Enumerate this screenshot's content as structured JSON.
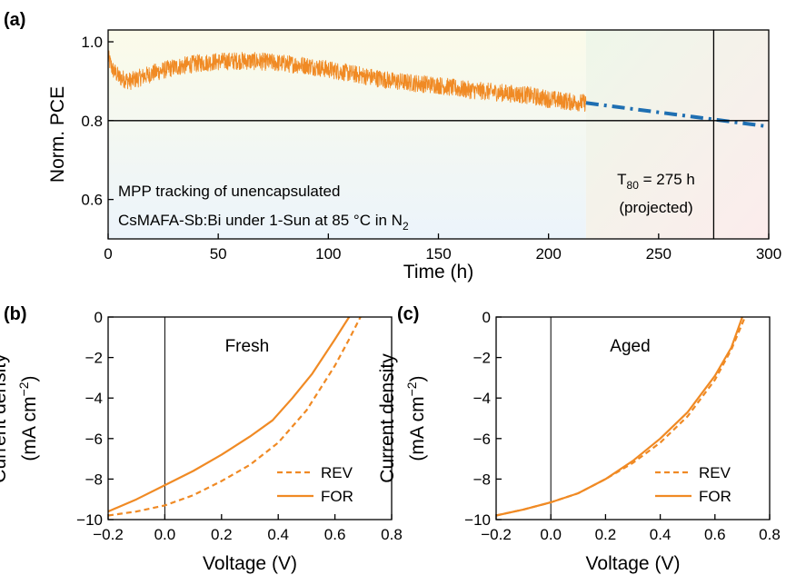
{
  "colors": {
    "series_orange": "#f08a24",
    "projection_blue": "#1f6fb2",
    "bg_yellow": "#fbfbe9",
    "bg_blue": "#ecf4fb",
    "bg_green": "#eef7e9",
    "bg_pink": "#fcecec",
    "axis": "#000000"
  },
  "chart_data": [
    {
      "panel_label": "(a)",
      "type": "line",
      "xlabel": "Time (h)",
      "ylabel": "Norm. PCE",
      "xlim": [
        0,
        300
      ],
      "ylim": [
        0.5,
        1.03
      ],
      "xticks": [
        "0",
        "50",
        "100",
        "150",
        "200",
        "250",
        "300"
      ],
      "yticks": [
        "0.6",
        "0.8",
        "1.0"
      ],
      "reference_line_y": 0.8,
      "t80_marker_x": 275,
      "annotation_lines": [
        "MPP tracking of unencapsulated",
        "CsMAFA-Sb:Bi under 1-Sun at 85 °C in N",
        "2"
      ],
      "t80_label": [
        "T",
        "80",
        " = 275 h"
      ],
      "projected_label": "(projected)",
      "series": [
        {
          "style": "noisy-measured",
          "x": [
            0,
            2,
            5,
            10,
            20,
            30,
            40,
            50,
            60,
            70,
            80,
            90,
            100,
            110,
            120,
            130,
            140,
            150,
            160,
            170,
            180,
            190,
            200,
            210,
            217
          ],
          "y": [
            0.96,
            0.93,
            0.91,
            0.9,
            0.92,
            0.935,
            0.945,
            0.95,
            0.952,
            0.95,
            0.945,
            0.94,
            0.93,
            0.92,
            0.91,
            0.9,
            0.895,
            0.89,
            0.88,
            0.875,
            0.87,
            0.865,
            0.855,
            0.848,
            0.845
          ]
        },
        {
          "style": "dash-dot-projection",
          "x": [
            217,
            300
          ],
          "y": [
            0.845,
            0.785
          ]
        }
      ]
    },
    {
      "panel_label": "(b)",
      "type": "line",
      "xlabel": "Voltage (V)",
      "ylabel_line1": "Current density",
      "ylabel_line2": [
        "(mA cm",
        "−2",
        ")"
      ],
      "xlim": [
        -0.2,
        0.8
      ],
      "ylim": [
        -10,
        0
      ],
      "xticks": [
        "−0.2",
        "0.0",
        "0.2",
        "0.4",
        "0.6",
        "0.8"
      ],
      "yticks": [
        "0",
        "−2",
        "−4",
        "−6",
        "−8",
        "−10"
      ],
      "inner_title": "Fresh",
      "series": [
        {
          "name": "REV",
          "style": "dashed",
          "x": [
            -0.2,
            -0.1,
            0.0,
            0.1,
            0.2,
            0.3,
            0.4,
            0.5,
            0.6,
            0.65,
            0.69
          ],
          "y": [
            -9.8,
            -9.6,
            -9.3,
            -8.8,
            -8.1,
            -7.3,
            -6.2,
            -4.6,
            -2.4,
            -1.1,
            0.0
          ]
        },
        {
          "name": "FOR",
          "style": "solid",
          "x": [
            -0.2,
            -0.1,
            0.0,
            0.1,
            0.2,
            0.3,
            0.38,
            0.45,
            0.52,
            0.6,
            0.65
          ],
          "y": [
            -9.6,
            -9.0,
            -8.3,
            -7.6,
            -6.8,
            -5.9,
            -5.1,
            -4.0,
            -2.8,
            -1.1,
            0.0
          ]
        }
      ]
    },
    {
      "panel_label": "(c)",
      "type": "line",
      "xlabel": "Voltage (V)",
      "ylabel_line1": "Current density",
      "ylabel_line2": [
        "(mA cm",
        "−2",
        ")"
      ],
      "xlim": [
        -0.2,
        0.8
      ],
      "ylim": [
        -10,
        0
      ],
      "xticks": [
        "−0.2",
        "0.0",
        "0.2",
        "0.4",
        "0.6",
        "0.8"
      ],
      "yticks": [
        "0",
        "−2",
        "−4",
        "−6",
        "−8",
        "−10"
      ],
      "inner_title": "Aged",
      "series": [
        {
          "name": "REV",
          "style": "dashed",
          "x": [
            -0.2,
            -0.1,
            0.0,
            0.1,
            0.2,
            0.3,
            0.4,
            0.5,
            0.6,
            0.66,
            0.71
          ],
          "y": [
            -9.8,
            -9.5,
            -9.15,
            -8.7,
            -8.0,
            -7.2,
            -6.2,
            -4.9,
            -3.1,
            -1.6,
            0.0
          ]
        },
        {
          "name": "FOR",
          "style": "solid",
          "x": [
            -0.2,
            -0.1,
            0.0,
            0.1,
            0.2,
            0.3,
            0.4,
            0.5,
            0.6,
            0.66,
            0.7
          ],
          "y": [
            -9.8,
            -9.5,
            -9.15,
            -8.7,
            -8.0,
            -7.1,
            -6.0,
            -4.7,
            -2.9,
            -1.5,
            0.0
          ]
        }
      ]
    }
  ]
}
